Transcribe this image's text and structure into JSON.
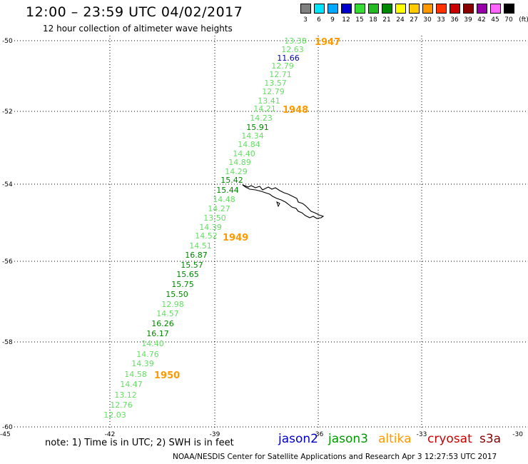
{
  "header": {
    "title": "12:00 – 23:59 UTC 04/02/2017",
    "subtitle": "12 hour collection of altimeter wave heights"
  },
  "color_scale": {
    "labels": [
      "3",
      "6",
      "9",
      "12",
      "15",
      "18",
      "21",
      "24",
      "27",
      "30",
      "33",
      "36",
      "39",
      "42",
      "45",
      "70"
    ],
    "colors": [
      "#808080",
      "#00e5ff",
      "#00a8ff",
      "#0000cc",
      "#33dd33",
      "#22bb22",
      "#008800",
      "#ffff00",
      "#ffcc00",
      "#ff9900",
      "#ff3300",
      "#cc0000",
      "#880000",
      "#9900aa",
      "#ff66ff",
      "#000000"
    ],
    "unit": "(ft)"
  },
  "axes": {
    "y_labels": [
      "-50",
      "-52",
      "-54",
      "-56",
      "-58",
      "-60"
    ],
    "x_labels": [
      "-45",
      "-42",
      "-39",
      "-36",
      "-33",
      "-30"
    ]
  },
  "chart_data": {
    "type": "scatter",
    "observations": [
      {
        "value": "13.38",
        "color": "#66dd66"
      },
      {
        "value": "12.63",
        "color": "#66dd66"
      },
      {
        "value": "11.66",
        "color": "#0000aa"
      },
      {
        "value": "12.79",
        "color": "#66dd66"
      },
      {
        "value": "12.71",
        "color": "#66dd66"
      },
      {
        "value": "13.57",
        "color": "#66dd66"
      },
      {
        "value": "12.79",
        "color": "#66dd66"
      },
      {
        "value": "13.41",
        "color": "#66dd66"
      },
      {
        "value": "14.21",
        "color": "#66dd66"
      },
      {
        "value": "14.23",
        "color": "#66dd66"
      },
      {
        "value": "15.91",
        "color": "#008800"
      },
      {
        "value": "14.34",
        "color": "#66dd66"
      },
      {
        "value": "14.84",
        "color": "#66dd66"
      },
      {
        "value": "14.40",
        "color": "#66dd66"
      },
      {
        "value": "14.89",
        "color": "#66dd66"
      },
      {
        "value": "14.29",
        "color": "#66dd66"
      },
      {
        "value": "15.42",
        "color": "#008800"
      },
      {
        "value": "15.44",
        "color": "#008800"
      },
      {
        "value": "14.48",
        "color": "#66dd66"
      },
      {
        "value": "14.27",
        "color": "#66dd66"
      },
      {
        "value": "13.50",
        "color": "#66dd66"
      },
      {
        "value": "14.39",
        "color": "#66dd66"
      },
      {
        "value": "14.52",
        "color": "#66dd66"
      },
      {
        "value": "14.51",
        "color": "#66dd66"
      },
      {
        "value": "16.87",
        "color": "#008800"
      },
      {
        "value": "15.57",
        "color": "#008800"
      },
      {
        "value": "15.65",
        "color": "#008800"
      },
      {
        "value": "15.75",
        "color": "#008800"
      },
      {
        "value": "15.50",
        "color": "#008800"
      },
      {
        "value": "12.98",
        "color": "#66dd66"
      },
      {
        "value": "14.57",
        "color": "#66dd66"
      },
      {
        "value": "16.26",
        "color": "#008800"
      },
      {
        "value": "16.17",
        "color": "#008800"
      },
      {
        "value": "14.40",
        "color": "#66dd66"
      },
      {
        "value": "14.76",
        "color": "#66dd66"
      },
      {
        "value": "14.39",
        "color": "#66dd66"
      },
      {
        "value": "14.58",
        "color": "#66dd66"
      },
      {
        "value": "14.47",
        "color": "#66dd66"
      },
      {
        "value": "13.12",
        "color": "#66dd66"
      },
      {
        "value": "12.76",
        "color": "#66dd66"
      },
      {
        "value": "12.03",
        "color": "#66dd66"
      }
    ],
    "time_markers": [
      "1947",
      "1948",
      "1949",
      "1950"
    ]
  },
  "footer": {
    "note": "note: 1) Time is in UTC; 2) SWH is in feet",
    "legend": [
      {
        "name": "jason2",
        "color": "#0000cc"
      },
      {
        "name": "jason3",
        "color": "#009900"
      },
      {
        "name": "altika",
        "color": "#ff9900"
      },
      {
        "name": "cryosat",
        "color": "#cc0000"
      },
      {
        "name": "s3a",
        "color": "#880000"
      }
    ],
    "credit": "NOAA/NESDIS Center for Satellite Applications and Research    Apr  3 12:27:53 UTC 2017"
  }
}
